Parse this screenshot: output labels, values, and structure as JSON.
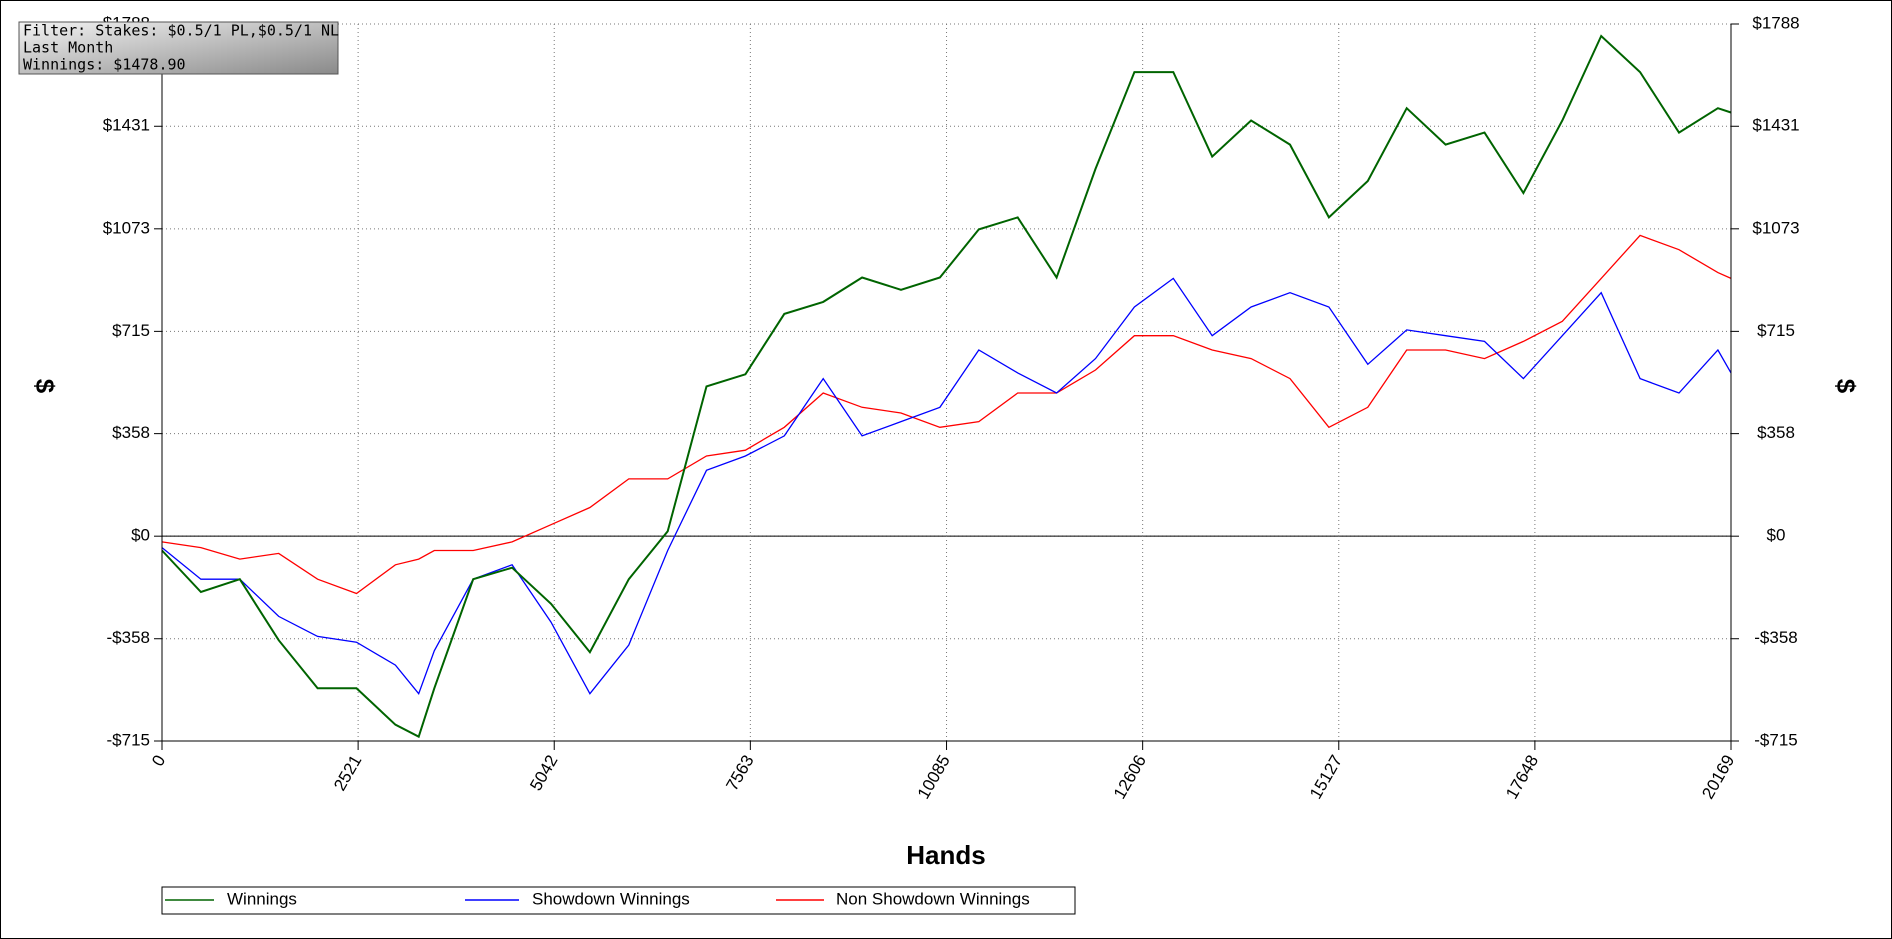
{
  "info": {
    "filter": "Filter: Stakes: $0.5/1 PL,$0.5/1 NL",
    "period": "Last Month",
    "winnings": "Winnings: $1478.90"
  },
  "chart_data": {
    "type": "line",
    "x_label": "Hands",
    "y_label": "$",
    "x": [
      0,
      500,
      1000,
      1500,
      2000,
      2500,
      3000,
      3300,
      3500,
      4000,
      4500,
      5000,
      5500,
      6000,
      6500,
      7000,
      7500,
      8000,
      8500,
      9000,
      9500,
      10000,
      10500,
      11000,
      11500,
      12000,
      12500,
      13000,
      13500,
      14000,
      14500,
      15000,
      15500,
      16000,
      16500,
      17000,
      17500,
      18000,
      18500,
      19000,
      19500,
      20000,
      20169
    ],
    "series": [
      {
        "name": "Winnings",
        "color": "#006400",
        "values": [
          -50,
          -195,
          -150,
          -363,
          -531,
          -531,
          -658,
          -700,
          -531,
          -150,
          -110,
          -236,
          -405,
          -150,
          17,
          523,
          565,
          776,
          818,
          903,
          860,
          903,
          1071,
          1113,
          903,
          1282,
          1620,
          1620,
          1325,
          1451,
          1367,
          1113,
          1240,
          1494,
          1367,
          1409,
          1198,
          1451,
          1746,
          1620,
          1409,
          1494,
          1479
        ]
      },
      {
        "name": "Showdown Winnings",
        "color": "#0000ff",
        "values": [
          -40,
          -150,
          -150,
          -280,
          -350,
          -370,
          -450,
          -550,
          -400,
          -150,
          -100,
          -300,
          -550,
          -380,
          -50,
          230,
          280,
          350,
          550,
          350,
          400,
          450,
          650,
          570,
          500,
          620,
          800,
          900,
          700,
          800,
          850,
          800,
          600,
          720,
          700,
          680,
          550,
          700,
          850,
          550,
          500,
          650,
          570
        ]
      },
      {
        "name": "Non Showdown Winnings",
        "color": "#ff0000",
        "values": [
          -20,
          -40,
          -80,
          -60,
          -150,
          -200,
          -100,
          -80,
          -50,
          -50,
          -20,
          40,
          100,
          200,
          200,
          280,
          300,
          380,
          500,
          450,
          430,
          380,
          400,
          500,
          500,
          580,
          700,
          700,
          650,
          620,
          550,
          380,
          450,
          650,
          650,
          620,
          680,
          750,
          900,
          1050,
          1000,
          920,
          900
        ]
      }
    ],
    "xlim": [
      0,
      20169
    ],
    "xticks": [
      0,
      2521,
      5042,
      7563,
      10085,
      12606,
      15127,
      17648,
      20169
    ],
    "ylim": [
      -715,
      1788
    ],
    "yticks": [
      {
        "value": -715,
        "label": "-$715"
      },
      {
        "value": -358,
        "label": "-$358"
      },
      {
        "value": 0,
        "label": "$0"
      },
      {
        "value": 358,
        "label": "$358"
      },
      {
        "value": 715,
        "label": "$715"
      },
      {
        "value": 1073,
        "label": "$1073"
      },
      {
        "value": 1431,
        "label": "$1431"
      },
      {
        "value": 1788,
        "label": "$1788"
      }
    ],
    "grid": true
  }
}
